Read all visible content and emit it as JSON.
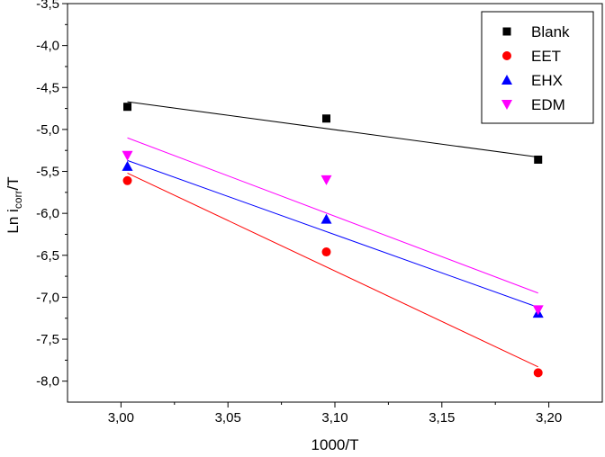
{
  "chart_data": {
    "type": "scatter",
    "xlabel": "1000/T",
    "ylabel": {
      "main": "Ln i",
      "sub": "corr",
      "suffix": "/T"
    },
    "xlim": [
      2.975,
      3.225
    ],
    "ylim": [
      -8.25,
      -3.5
    ],
    "x_ticks": [
      3.0,
      3.05,
      3.1,
      3.15,
      3.2
    ],
    "x_tick_labels": [
      "3,00",
      "3,05",
      "3,10",
      "3,15",
      "3,20"
    ],
    "y_ticks": [
      -3.5,
      -4.0,
      -4.5,
      -5.0,
      -5.5,
      -6.0,
      -6.5,
      -7.0,
      -7.5,
      -8.0
    ],
    "y_tick_labels": [
      "-3,5",
      "-4,0",
      "-4,5",
      "-5,0",
      "-5,5",
      "-6,0",
      "-6,5",
      "-7,0",
      "-7,5",
      "-8,0"
    ],
    "grid": false,
    "legend_position": "top-right",
    "series": [
      {
        "name": "Blank",
        "marker": "square",
        "color": "#000000",
        "x": [
          3.003,
          3.096,
          3.195
        ],
        "y": [
          -4.73,
          -4.87,
          -5.36
        ],
        "fit": {
          "x": [
            3.003,
            3.195
          ],
          "y": [
            -4.67,
            -5.33
          ]
        }
      },
      {
        "name": "EET",
        "marker": "circle",
        "color": "#ff0000",
        "x": [
          3.003,
          3.096,
          3.195
        ],
        "y": [
          -5.61,
          -6.46,
          -7.9
        ],
        "fit": {
          "x": [
            3.003,
            3.195
          ],
          "y": [
            -5.52,
            -7.83
          ]
        }
      },
      {
        "name": "EHX",
        "marker": "triangle-up",
        "color": "#0000ff",
        "x": [
          3.003,
          3.096,
          3.195
        ],
        "y": [
          -5.44,
          -6.07,
          -7.19
        ],
        "fit": {
          "x": [
            3.003,
            3.195
          ],
          "y": [
            -5.37,
            -7.12
          ]
        }
      },
      {
        "name": "EDM",
        "marker": "triangle-down",
        "color": "#ff00ff",
        "x": [
          3.003,
          3.096,
          3.195
        ],
        "y": [
          -5.31,
          -5.6,
          -7.15
        ],
        "fit": {
          "x": [
            3.003,
            3.195
          ],
          "y": [
            -5.1,
            -6.95
          ]
        }
      }
    ]
  }
}
